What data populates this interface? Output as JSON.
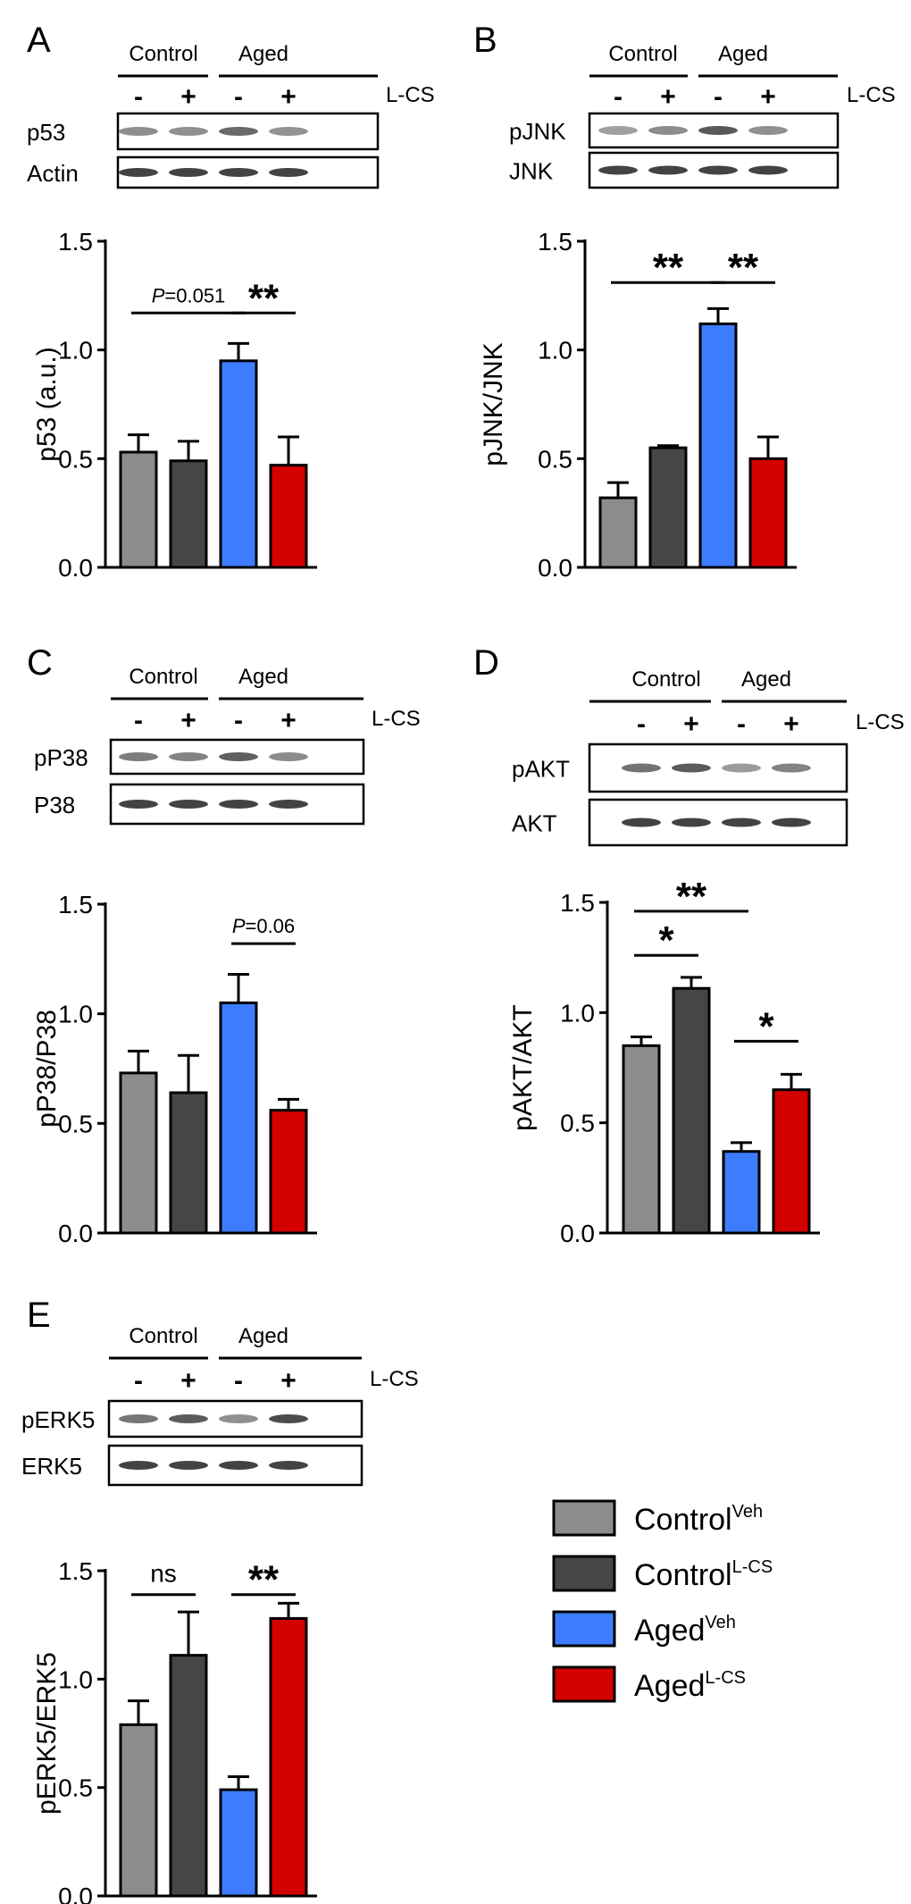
{
  "legend": [
    {
      "name": "Control",
      "sup": "Veh",
      "color": "#8c8c8c"
    },
    {
      "name": "Control",
      "sup": "L-CS",
      "color": "#464646"
    },
    {
      "name": "Aged",
      "sup": "Veh",
      "color": "#3d7cff"
    },
    {
      "name": "Aged",
      "sup": "L-CS",
      "color": "#d40000"
    }
  ],
  "blot_header": {
    "groups": [
      "Control",
      "Aged"
    ],
    "signs": [
      "-",
      "+",
      "-",
      "+"
    ],
    "treatment": "L-CS"
  },
  "chart_data": [
    {
      "panel": "A",
      "type": "bar",
      "proteins": [
        "p53",
        "Actin"
      ],
      "categories": [
        "ControlVeh",
        "ControlL-CS",
        "AgedVeh",
        "AgedL-CS"
      ],
      "values": [
        0.53,
        0.49,
        0.95,
        0.47
      ],
      "errors": [
        0.08,
        0.09,
        0.08,
        0.13
      ],
      "ylabel": "p53 (a.u.)",
      "ylim": [
        0,
        1.5
      ],
      "ticks": [
        "0.0",
        "0.5",
        "1.0",
        "1.5"
      ],
      "annotations": [
        {
          "from": 0,
          "to": 2,
          "y": 1.17,
          "label": "P=0.051",
          "italic": "P",
          "rest": "=0.051",
          "kind": "p"
        },
        {
          "from": 2,
          "to": 3,
          "y": 1.17,
          "label": "**",
          "kind": "star"
        }
      ]
    },
    {
      "panel": "B",
      "type": "bar",
      "proteins": [
        "pJNK",
        "JNK"
      ],
      "categories": [
        "ControlVeh",
        "ControlL-CS",
        "AgedVeh",
        "AgedL-CS"
      ],
      "values": [
        0.32,
        0.55,
        1.12,
        0.5
      ],
      "errors": [
        0.07,
        0.01,
        0.07,
        0.1
      ],
      "ylabel": "pJNK/JNK",
      "ylim": [
        0,
        1.5
      ],
      "ticks": [
        "0.0",
        "0.5",
        "1.0",
        "1.5"
      ],
      "annotations": [
        {
          "from": 0,
          "to": 2,
          "y": 1.31,
          "label": "**",
          "kind": "star"
        },
        {
          "from": 2,
          "to": 3,
          "y": 1.31,
          "label": "**",
          "kind": "star"
        }
      ]
    },
    {
      "panel": "C",
      "type": "bar",
      "proteins": [
        "pP38",
        "P38"
      ],
      "categories": [
        "ControlVeh",
        "ControlL-CS",
        "AgedVeh",
        "AgedL-CS"
      ],
      "values": [
        0.73,
        0.64,
        1.05,
        0.56
      ],
      "errors": [
        0.1,
        0.17,
        0.13,
        0.05
      ],
      "ylabel": "pP38/P38",
      "ylim": [
        0,
        1.5
      ],
      "ticks": [
        "0.0",
        "0.5",
        "1.0",
        "1.5"
      ],
      "annotations": [
        {
          "from": 2,
          "to": 3,
          "y": 1.32,
          "label": "P=0.06",
          "italic": "P",
          "rest": "=0.06",
          "kind": "p"
        }
      ]
    },
    {
      "panel": "D",
      "type": "bar",
      "proteins": [
        "pAKT",
        "AKT"
      ],
      "categories": [
        "ControlVeh",
        "ControlL-CS",
        "AgedVeh",
        "AgedL-CS"
      ],
      "values": [
        0.85,
        1.11,
        0.37,
        0.65
      ],
      "errors": [
        0.04,
        0.05,
        0.04,
        0.07
      ],
      "ylabel": "pAKT/AKT",
      "ylim": [
        0,
        1.5
      ],
      "ticks": [
        "0.0",
        "0.5",
        "1.0",
        "1.5"
      ],
      "annotations": [
        {
          "from": 0,
          "to": 2,
          "y": 1.46,
          "label": "**",
          "kind": "star"
        },
        {
          "from": 0,
          "to": 1,
          "y": 1.26,
          "label": "*",
          "kind": "star"
        },
        {
          "from": 2,
          "to": 3,
          "y": 0.87,
          "label": "*",
          "kind": "star"
        }
      ]
    },
    {
      "panel": "E",
      "type": "bar",
      "proteins": [
        "pERK5",
        "ERK5"
      ],
      "categories": [
        "ControlVeh",
        "ControlL-CS",
        "AgedVeh",
        "AgedL-CS"
      ],
      "values": [
        0.79,
        1.11,
        0.49,
        1.28
      ],
      "errors": [
        0.11,
        0.2,
        0.06,
        0.07
      ],
      "ylabel": "pERK5/ERK5",
      "ylim": [
        0,
        1.5
      ],
      "ticks": [
        "0.0",
        "0.5",
        "1.0",
        "1.5"
      ],
      "annotations": [
        {
          "from": 0,
          "to": 1,
          "y": 1.39,
          "label": "ns",
          "kind": "ns"
        },
        {
          "from": 2,
          "to": 3,
          "y": 1.39,
          "label": "**",
          "kind": "star"
        }
      ]
    }
  ]
}
